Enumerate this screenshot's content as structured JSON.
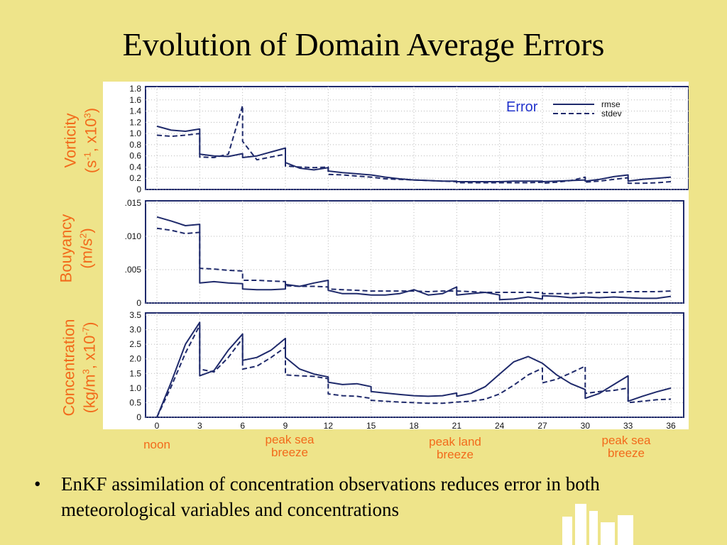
{
  "slide": {
    "title": "Evolution of Domain Average Errors",
    "bullet": "EnKF assimilation of concentration observations reduces error in both meteorological variables and concentrations"
  },
  "colors": {
    "background": "#eee48a",
    "line": "#1f2a6b",
    "label": "#f26a1b",
    "legend_title": "#2233cc"
  },
  "y_labels": {
    "vorticity": {
      "line1": "Vorticity",
      "line2_pre": "(s",
      "line2_sup1": "-1",
      "line2_mid": ", x10",
      "line2_sup2": "3",
      "line2_post": ")"
    },
    "bouyancy": {
      "line1": "Bouyancy",
      "line2_pre": "(m/s",
      "line2_sup": "2",
      "line2_post": ")"
    },
    "concentration": {
      "line1": "Concentration",
      "line2_pre": "(kg/m",
      "line2_sup1": "3",
      "line2_mid": ", x10",
      "line2_sup2": "-7",
      "line2_post": ")"
    }
  },
  "events": [
    {
      "id": "noon",
      "line1": "noon",
      "line2": ""
    },
    {
      "id": "sea1",
      "line1": "peak sea",
      "line2": "breeze"
    },
    {
      "id": "land",
      "line1": "peak land",
      "line2": "breeze"
    },
    {
      "id": "sea2",
      "line1": "peak sea",
      "line2": "breeze"
    }
  ],
  "chart_data": [
    {
      "type": "line",
      "panel": "vorticity",
      "xlim": [
        0,
        36
      ],
      "ylim": [
        0,
        1.8
      ],
      "yticks": [
        0,
        0.2,
        0.4,
        0.6,
        0.8,
        1.0,
        1.2,
        1.4,
        1.6,
        1.8
      ],
      "ytick_labels": [
        "0",
        "0.2",
        "0.4",
        "0.6",
        "0.8",
        "1.0",
        "1.2",
        "1.4",
        "1.6",
        "1.8"
      ],
      "legend": {
        "title": "Error",
        "entries": [
          "rmse",
          "stdev"
        ]
      },
      "series": [
        {
          "name": "rmse",
          "style": "solid",
          "x": [
            0,
            1,
            2,
            3,
            3,
            4,
            5,
            6,
            6,
            7,
            8,
            9,
            9,
            10,
            11,
            12,
            12,
            13,
            14,
            15,
            16,
            17,
            18,
            19,
            20,
            21,
            21,
            22,
            23,
            24,
            25,
            26,
            27,
            27,
            28,
            29,
            30,
            30,
            31,
            32,
            33,
            33,
            34,
            35,
            36
          ],
          "y": [
            1.13,
            1.06,
            1.04,
            1.08,
            0.63,
            0.6,
            0.59,
            0.64,
            0.57,
            0.6,
            0.67,
            0.74,
            0.48,
            0.38,
            0.35,
            0.39,
            0.33,
            0.3,
            0.28,
            0.26,
            0.22,
            0.19,
            0.17,
            0.16,
            0.15,
            0.15,
            0.14,
            0.14,
            0.14,
            0.14,
            0.15,
            0.15,
            0.15,
            0.14,
            0.15,
            0.16,
            0.17,
            0.15,
            0.18,
            0.23,
            0.26,
            0.15,
            0.18,
            0.2,
            0.22
          ]
        },
        {
          "name": "stdev",
          "style": "dashed",
          "x": [
            0,
            1,
            2,
            3,
            3,
            4,
            5,
            6,
            6,
            7,
            8,
            9,
            9,
            10,
            11,
            12,
            12,
            13,
            14,
            15,
            16,
            17,
            18,
            19,
            20,
            21,
            21,
            22,
            23,
            24,
            25,
            26,
            27,
            27,
            28,
            29,
            30,
            30,
            31,
            32,
            33,
            33,
            34,
            35,
            36
          ],
          "y": [
            0.97,
            0.95,
            0.97,
            1.0,
            0.58,
            0.57,
            0.63,
            1.5,
            0.86,
            0.53,
            0.58,
            0.63,
            0.42,
            0.4,
            0.39,
            0.4,
            0.27,
            0.26,
            0.24,
            0.22,
            0.19,
            0.18,
            0.17,
            0.16,
            0.15,
            0.14,
            0.12,
            0.12,
            0.12,
            0.12,
            0.12,
            0.12,
            0.13,
            0.11,
            0.13,
            0.16,
            0.22,
            0.13,
            0.15,
            0.18,
            0.21,
            0.11,
            0.11,
            0.12,
            0.14
          ]
        }
      ]
    },
    {
      "type": "line",
      "panel": "bouyancy",
      "xlim": [
        0,
        36
      ],
      "ylim": [
        0,
        0.015
      ],
      "yticks": [
        0,
        0.005,
        0.01,
        0.015
      ],
      "ytick_labels": [
        "0",
        ".005",
        ".010",
        ".015"
      ],
      "series": [
        {
          "name": "rmse",
          "style": "solid",
          "x": [
            0,
            1,
            2,
            3,
            3,
            4,
            5,
            6,
            6,
            7,
            8,
            9,
            9,
            10,
            11,
            12,
            12,
            13,
            14,
            15,
            16,
            17,
            18,
            19,
            20,
            21,
            21,
            22,
            23,
            24,
            24,
            25,
            26,
            27,
            27,
            28,
            29,
            30,
            31,
            32,
            33,
            34,
            35,
            36
          ],
          "y": [
            0.0129,
            0.0123,
            0.0116,
            0.0118,
            0.003,
            0.0032,
            0.003,
            0.0029,
            0.0021,
            0.002,
            0.002,
            0.0021,
            0.0028,
            0.0025,
            0.003,
            0.0034,
            0.0019,
            0.0014,
            0.0014,
            0.0012,
            0.0012,
            0.0014,
            0.002,
            0.0012,
            0.0014,
            0.0024,
            0.0012,
            0.0014,
            0.0016,
            0.0012,
            0.0005,
            0.0006,
            0.0009,
            0.0006,
            0.0011,
            0.001,
            0.0008,
            0.0009,
            0.0008,
            0.0009,
            0.0008,
            0.0007,
            0.0007,
            0.001
          ]
        },
        {
          "name": "stdev",
          "style": "dashed",
          "x": [
            0,
            1,
            2,
            3,
            3,
            4,
            5,
            6,
            6,
            7,
            8,
            9,
            9,
            10,
            11,
            12,
            12,
            13,
            14,
            15,
            16,
            17,
            18,
            19,
            20,
            21,
            22,
            23,
            24,
            25,
            26,
            27,
            27,
            28,
            29,
            30,
            31,
            32,
            33,
            34,
            35,
            36
          ],
          "y": [
            0.0112,
            0.0109,
            0.0104,
            0.0106,
            0.0052,
            0.0051,
            0.0049,
            0.0048,
            0.0034,
            0.0034,
            0.0033,
            0.0032,
            0.0026,
            0.0025,
            0.0025,
            0.0024,
            0.0021,
            0.002,
            0.0019,
            0.0018,
            0.0018,
            0.0018,
            0.0018,
            0.0017,
            0.0018,
            0.0018,
            0.0017,
            0.0016,
            0.0016,
            0.0016,
            0.0016,
            0.0016,
            0.0014,
            0.0014,
            0.0014,
            0.0015,
            0.0016,
            0.0016,
            0.0017,
            0.0017,
            0.0017,
            0.0018
          ]
        }
      ]
    },
    {
      "type": "line",
      "panel": "concentration",
      "xlim": [
        0,
        36
      ],
      "ylim": [
        0,
        3.5
      ],
      "xticks": [
        0,
        3,
        6,
        9,
        12,
        15,
        18,
        21,
        24,
        27,
        30,
        33,
        36
      ],
      "yticks": [
        0,
        0.5,
        1.0,
        1.5,
        2.0,
        2.5,
        3.0,
        3.5
      ],
      "ytick_labels": [
        "0",
        "0.5",
        "1.0",
        "1.5",
        "2.0",
        "2.5",
        "3.0",
        "3.5"
      ],
      "series": [
        {
          "name": "rmse",
          "style": "solid",
          "x": [
            0,
            1,
            2,
            3,
            3,
            4,
            5,
            6,
            6,
            7,
            8,
            9,
            9,
            10,
            11,
            12,
            12,
            13,
            14,
            15,
            15,
            16,
            17,
            18,
            19,
            20,
            21,
            21,
            22,
            23,
            24,
            25,
            26,
            27,
            28,
            29,
            30,
            30,
            31,
            32,
            33,
            33,
            34,
            35,
            36
          ],
          "y": [
            0,
            1.2,
            2.5,
            3.25,
            1.42,
            1.6,
            2.3,
            2.85,
            1.95,
            2.05,
            2.3,
            2.7,
            2.05,
            1.65,
            1.48,
            1.38,
            1.2,
            1.12,
            1.15,
            1.05,
            0.88,
            0.83,
            0.78,
            0.74,
            0.72,
            0.74,
            0.83,
            0.72,
            0.82,
            1.05,
            1.48,
            1.9,
            2.08,
            1.85,
            1.45,
            1.15,
            0.95,
            0.65,
            0.82,
            1.12,
            1.42,
            0.55,
            0.72,
            0.87,
            1.0
          ]
        },
        {
          "name": "stdev",
          "style": "dashed",
          "x": [
            0,
            1,
            2,
            3,
            3,
            4,
            5,
            6,
            6,
            7,
            8,
            9,
            9,
            10,
            11,
            12,
            12,
            13,
            14,
            15,
            15,
            16,
            17,
            18,
            19,
            20,
            21,
            22,
            23,
            24,
            25,
            26,
            27,
            27,
            28,
            29,
            30,
            30,
            31,
            32,
            33,
            33,
            34,
            35,
            36
          ],
          "y": [
            0,
            1.05,
            2.2,
            3.15,
            1.65,
            1.55,
            2.05,
            2.7,
            1.65,
            1.75,
            2.05,
            2.4,
            1.45,
            1.42,
            1.4,
            1.32,
            0.8,
            0.74,
            0.72,
            0.65,
            0.58,
            0.55,
            0.52,
            0.5,
            0.48,
            0.48,
            0.52,
            0.55,
            0.62,
            0.8,
            1.1,
            1.45,
            1.68,
            1.18,
            1.3,
            1.52,
            1.75,
            0.82,
            0.88,
            0.92,
            1.0,
            0.5,
            0.55,
            0.6,
            0.62
          ]
        }
      ]
    }
  ]
}
